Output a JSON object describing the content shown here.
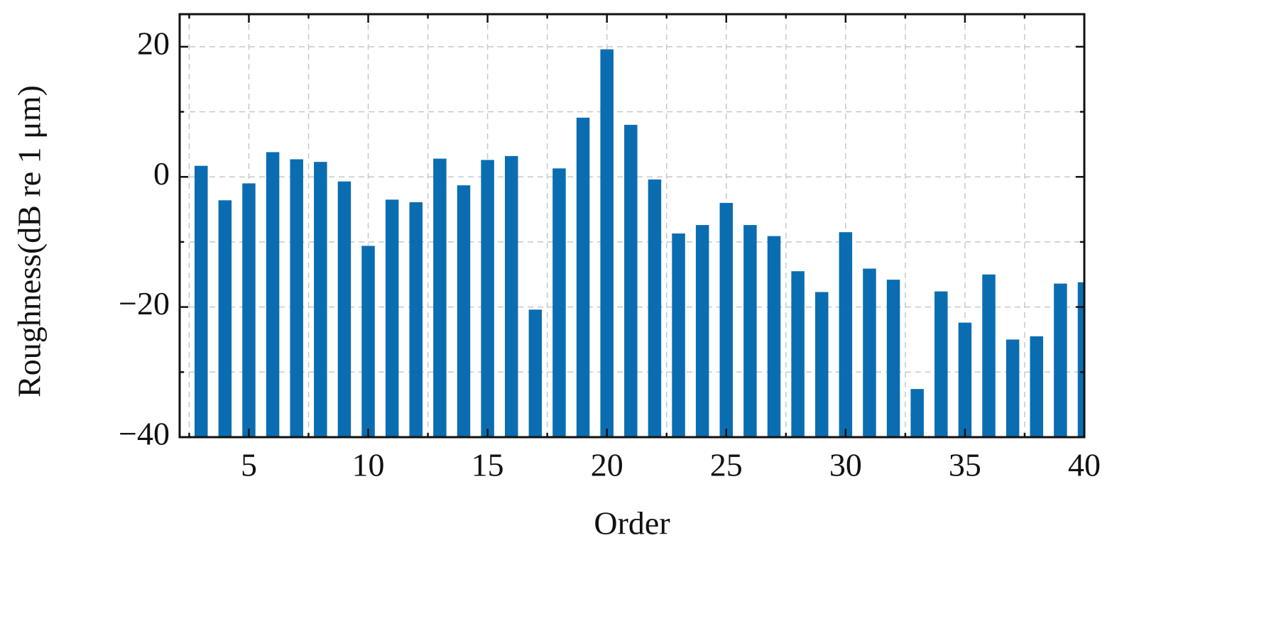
{
  "chart_data": {
    "type": "bar",
    "x_label": "Order",
    "y_label": "Roughness(dB re 1 μm)",
    "x": [
      3,
      4,
      5,
      6,
      7,
      8,
      9,
      10,
      11,
      12,
      13,
      14,
      15,
      16,
      17,
      18,
      19,
      20,
      21,
      22,
      23,
      24,
      25,
      26,
      27,
      28,
      29,
      30,
      31,
      32,
      33,
      34,
      35,
      36,
      37,
      38,
      39,
      40
    ],
    "values": [
      1.7,
      -3.6,
      -1.0,
      3.8,
      2.7,
      2.3,
      -0.7,
      -10.6,
      -3.5,
      -3.9,
      2.8,
      -1.3,
      2.6,
      3.2,
      -20.4,
      1.3,
      9.1,
      19.6,
      8.0,
      -0.4,
      -8.7,
      -7.4,
      -4.0,
      -7.4,
      -9.1,
      -14.5,
      -17.7,
      -8.5,
      -14.1,
      -15.8,
      -32.6,
      -17.6,
      -22.4,
      -15.0,
      -25.0,
      -24.5,
      -16.4,
      -16.2
    ],
    "color": "#0a6db1",
    "xlim": [
      2.1,
      40
    ],
    "ylim": [
      -40,
      25
    ],
    "xticks": [
      5,
      10,
      15,
      20,
      25,
      30,
      35,
      40
    ],
    "xminor": [
      2.5,
      7.5,
      12.5,
      17.5,
      22.5,
      27.5,
      32.5,
      37.5
    ],
    "yticks": [
      {
        "value": -40,
        "label": "−40"
      },
      {
        "value": -20,
        "label": "−20"
      },
      0,
      20
    ],
    "yminor": [
      -30,
      -10,
      10
    ],
    "grid": true
  }
}
